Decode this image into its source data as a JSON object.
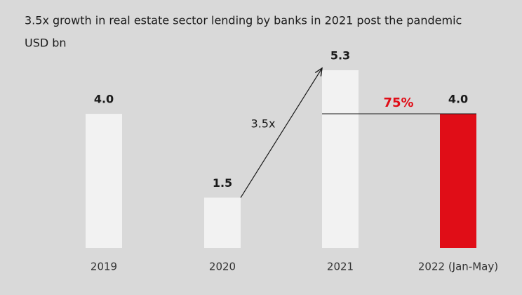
{
  "chart_data": {
    "type": "bar",
    "title": "3.5x growth in real estate sector lending by banks in 2021 post the pandemic",
    "subtitle": "USD bn",
    "categories": [
      "2019",
      "2020",
      "2021",
      "2022 (Jan-May)"
    ],
    "values": [
      4.0,
      1.5,
      5.3,
      4.0
    ],
    "value_labels": [
      "4.0",
      "1.5",
      "5.3",
      "4.0"
    ],
    "colors": [
      "#f2f2f2",
      "#f2f2f2",
      "#f2f2f2",
      "#e00d17"
    ],
    "annotations": [
      {
        "text": "3.5x",
        "color": "#1a1a1a"
      },
      {
        "text": "75%",
        "color": "#e00d17"
      }
    ]
  }
}
